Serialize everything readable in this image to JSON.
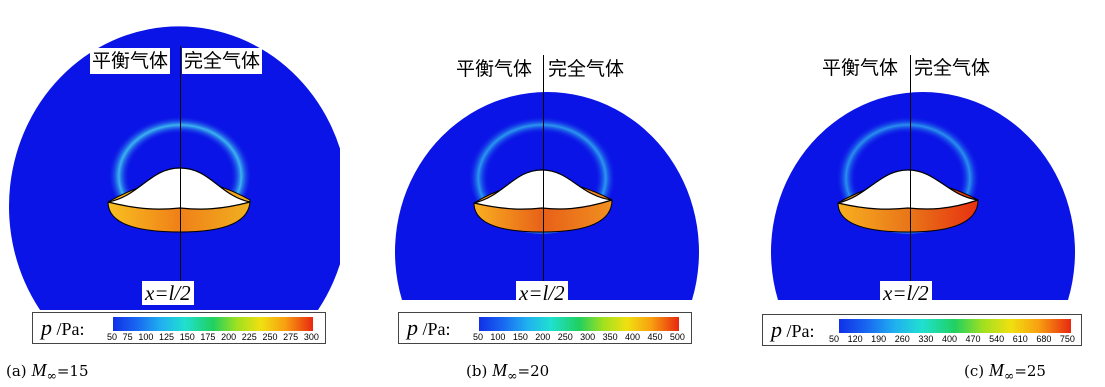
{
  "panels": [
    {
      "left_label": "平衡气体",
      "right_label": "完全气体",
      "position_label": "x=l/2",
      "legend_symbol": "p",
      "legend_unit": "/Pa:",
      "ticks": [
        "50",
        "75",
        "100",
        "125",
        "150",
        "175",
        "200",
        "225",
        "250",
        "275",
        "300"
      ],
      "caption_prefix": "(a)",
      "caption_mach": "M",
      "caption_sub": "∞",
      "caption_value": "=15"
    },
    {
      "left_label": "平衡气体",
      "right_label": "完全气体",
      "position_label": "x=l/2",
      "legend_symbol": "p",
      "legend_unit": "/Pa:",
      "ticks": [
        "50",
        "100",
        "150",
        "200",
        "250",
        "300",
        "350",
        "400",
        "450",
        "500"
      ],
      "caption_prefix": "(b)",
      "caption_mach": "M",
      "caption_sub": "∞",
      "caption_value": "=20"
    },
    {
      "left_label": "平衡气体",
      "right_label": "完全气体",
      "position_label": "x=l/2",
      "legend_symbol": "p",
      "legend_unit": "/Pa:",
      "ticks": [
        "50",
        "120",
        "190",
        "260",
        "330",
        "400",
        "470",
        "540",
        "610",
        "680",
        "750"
      ],
      "caption_prefix": "(c)",
      "caption_mach": "M",
      "caption_sub": "∞",
      "caption_value": "=25"
    }
  ],
  "colors": {
    "background_field": "#0a14e6",
    "shock_cyan": "#20c8e8",
    "surface_orange": "#f0a020",
    "surface_red": "#e84010"
  }
}
